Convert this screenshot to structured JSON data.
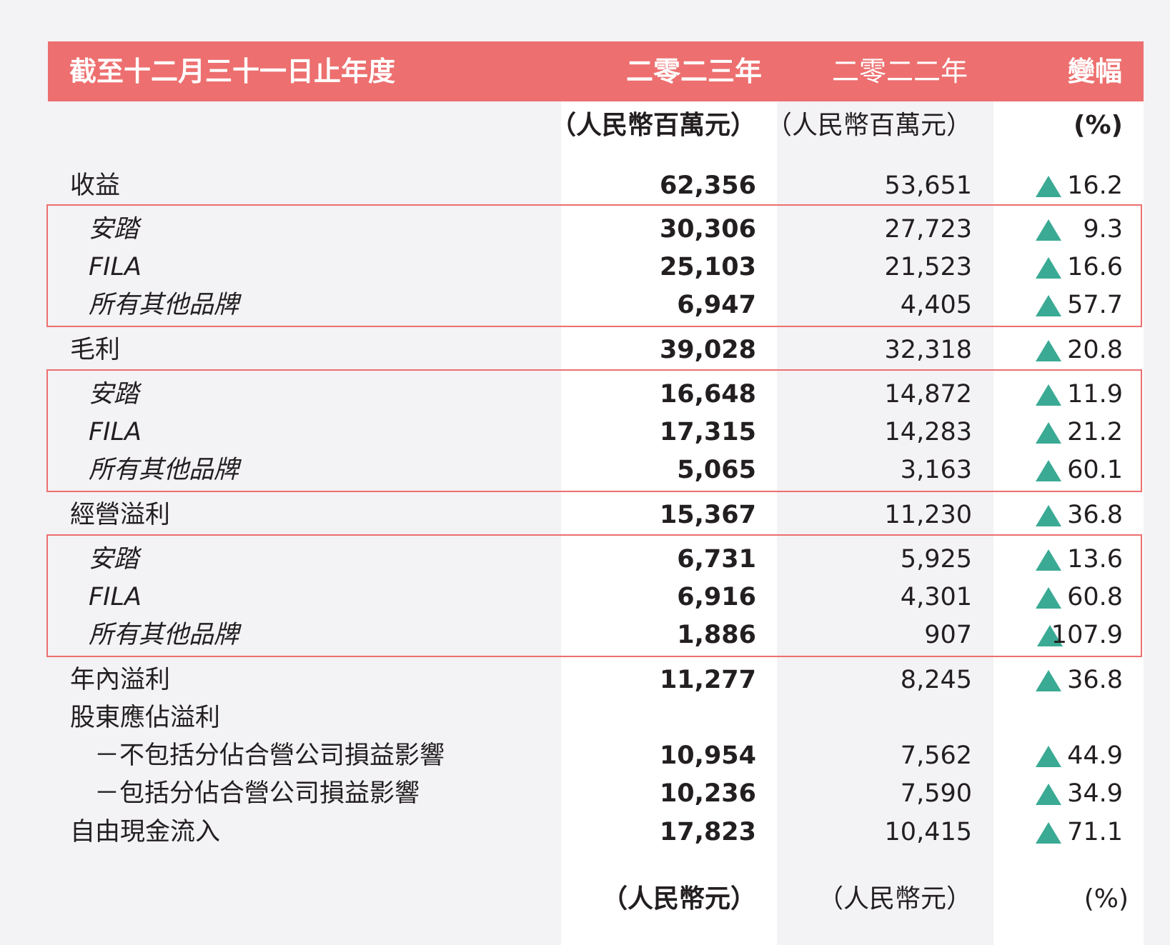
{
  "header": {
    "title": "截至十二月三十一日止年度",
    "col_2023": "二零二三年",
    "col_2022": "二零二二年",
    "col_change": "變幅"
  },
  "units": {
    "u2023": "（人民幣百萬元）",
    "u2022": "（人民幣百萬元）",
    "upct": "(%)"
  },
  "units2": {
    "u2023": "（人民幣元）",
    "u2022": "（人民幣元）",
    "upct": "(%)"
  },
  "rows": [
    {
      "label": "收益",
      "v2023": "62,356",
      "v2022": "53,651",
      "pct": "16.2"
    },
    {
      "label": "安踏",
      "v2023": "30,306",
      "v2022": "27,723",
      "pct": "9.3"
    },
    {
      "label": "FILA",
      "v2023": "25,103",
      "v2022": "21,523",
      "pct": "16.6"
    },
    {
      "label": "所有其他品牌",
      "v2023": "6,947",
      "v2022": "4,405",
      "pct": "57.7"
    },
    {
      "label": "毛利",
      "v2023": "39,028",
      "v2022": "32,318",
      "pct": "20.8"
    },
    {
      "label": "安踏",
      "v2023": "16,648",
      "v2022": "14,872",
      "pct": "11.9"
    },
    {
      "label": "FILA",
      "v2023": "17,315",
      "v2022": "14,283",
      "pct": "21.2"
    },
    {
      "label": "所有其他品牌",
      "v2023": "5,065",
      "v2022": "3,163",
      "pct": "60.1"
    },
    {
      "label": "經營溢利",
      "v2023": "15,367",
      "v2022": "11,230",
      "pct": "36.8"
    },
    {
      "label": "安踏",
      "v2023": "6,731",
      "v2022": "5,925",
      "pct": "13.6"
    },
    {
      "label": "FILA",
      "v2023": "6,916",
      "v2022": "4,301",
      "pct": "60.8"
    },
    {
      "label": "所有其他品牌",
      "v2023": "1,886",
      "v2022": "907",
      "pct": "107.9"
    },
    {
      "label": "年內溢利",
      "v2023": "11,277",
      "v2022": "8,245",
      "pct": "36.8"
    },
    {
      "label": "股東應佔溢利"
    },
    {
      "label": "－不包括分佔合營公司損益影響",
      "v2023": "10,954",
      "v2022": "7,562",
      "pct": "44.9"
    },
    {
      "label": "－包括分佔合營公司損益影響",
      "v2023": "10,236",
      "v2022": "7,590",
      "pct": "34.9"
    },
    {
      "label": "自由現金流入",
      "v2023": "17,823",
      "v2022": "10,415",
      "pct": "71.1"
    }
  ],
  "colors": {
    "header_bg": "#ed6f6f",
    "box_border": "#ed6f6f",
    "increase_icon": "#3aaa94",
    "page_bg": "#f3f2f5",
    "column_bg": "#ffffff"
  },
  "icons": {
    "increase": "triangle-up-icon"
  }
}
